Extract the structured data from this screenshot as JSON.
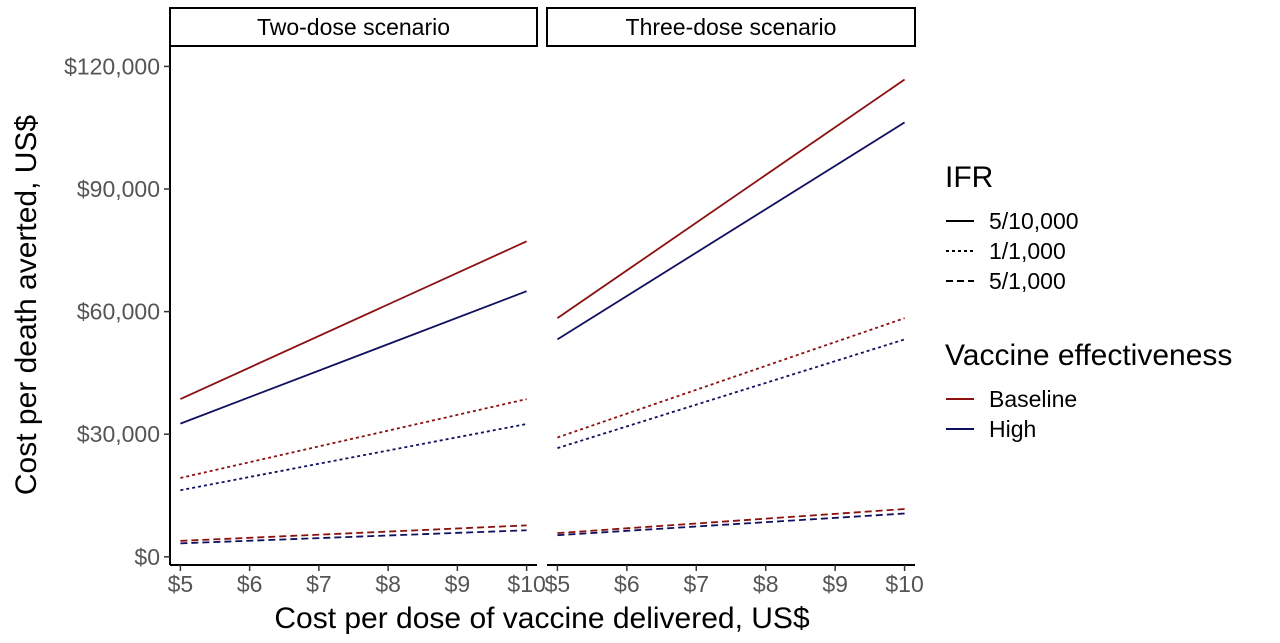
{
  "chart_data": {
    "type": "line",
    "xlabel": "Cost per dose of vaccine delivered, US$",
    "ylabel": "Cost per death averted, US$",
    "x_ticks": [
      5,
      6,
      7,
      8,
      9,
      10
    ],
    "x_tick_labels": [
      "$5",
      "$6",
      "$7",
      "$8",
      "$9",
      "$10"
    ],
    "y_ticks": [
      0,
      30000,
      60000,
      90000,
      120000
    ],
    "y_tick_labels": [
      "$0",
      "$30,000",
      "$60,000",
      "$90,000",
      "$120,000"
    ],
    "xlim": [
      4.85,
      10.15
    ],
    "ylim": [
      -2000,
      125000
    ],
    "grid": false,
    "legend_placement": "right",
    "colors": {
      "Baseline": "#8b1010",
      "High": "#101060"
    },
    "legend": {
      "ifr_title": "IFR",
      "ifr_items": [
        {
          "label": "5/10,000",
          "linetype": "solid"
        },
        {
          "label": "1/1,000",
          "linetype": "dotted"
        },
        {
          "label": "5/1,000",
          "linetype": "dashed"
        }
      ],
      "ve_title": "Vaccine effectiveness",
      "ve_items": [
        {
          "label": "Baseline"
        },
        {
          "label": "High"
        }
      ]
    },
    "panels": [
      {
        "title": "Two-dose scenario",
        "series": [
          {
            "ifr": "5/10,000",
            "ve": "Baseline",
            "x": [
              5,
              10
            ],
            "y": [
              38600,
              77200
            ]
          },
          {
            "ifr": "5/10,000",
            "ve": "High",
            "x": [
              5,
              10
            ],
            "y": [
              32600,
              65000
            ]
          },
          {
            "ifr": "1/1,000",
            "ve": "Baseline",
            "x": [
              5,
              10
            ],
            "y": [
              19300,
              38600
            ]
          },
          {
            "ifr": "1/1,000",
            "ve": "High",
            "x": [
              5,
              10
            ],
            "y": [
              16300,
              32500
            ]
          },
          {
            "ifr": "5/1,000",
            "ve": "Baseline",
            "x": [
              5,
              10
            ],
            "y": [
              3900,
              7700
            ]
          },
          {
            "ifr": "5/1,000",
            "ve": "High",
            "x": [
              5,
              10
            ],
            "y": [
              3300,
              6500
            ]
          }
        ]
      },
      {
        "title": "Three-dose scenario",
        "series": [
          {
            "ifr": "5/10,000",
            "ve": "Baseline",
            "x": [
              5,
              10
            ],
            "y": [
              58400,
              116800
            ]
          },
          {
            "ifr": "5/10,000",
            "ve": "High",
            "x": [
              5,
              10
            ],
            "y": [
              53200,
              106300
            ]
          },
          {
            "ifr": "1/1,000",
            "ve": "Baseline",
            "x": [
              5,
              10
            ],
            "y": [
              29200,
              58400
            ]
          },
          {
            "ifr": "1/1,000",
            "ve": "High",
            "x": [
              5,
              10
            ],
            "y": [
              26600,
              53200
            ]
          },
          {
            "ifr": "5/1,000",
            "ve": "Baseline",
            "x": [
              5,
              10
            ],
            "y": [
              5800,
              11700
            ]
          },
          {
            "ifr": "5/1,000",
            "ve": "High",
            "x": [
              5,
              10
            ],
            "y": [
              5300,
              10600
            ]
          }
        ]
      }
    ]
  }
}
